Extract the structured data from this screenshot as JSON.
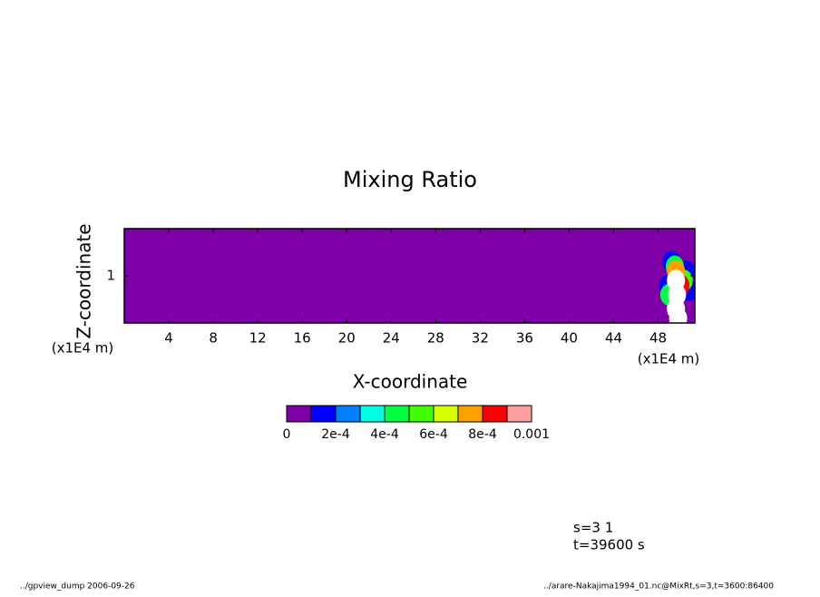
{
  "chart_data": {
    "type": "contour",
    "title": "Mixing Ratio",
    "xlabel": "X-coordinate",
    "ylabel": "Z-coordinate",
    "x_unit": "(x1E4 m)",
    "y_unit": "(x1E4 m)",
    "xlim": [
      0,
      51.3
    ],
    "ylim": [
      0.5,
      1.5
    ],
    "xticks": [
      4,
      8,
      12,
      16,
      20,
      24,
      28,
      32,
      36,
      40,
      44,
      48
    ],
    "yticks": [
      1
    ],
    "levels": [
      0,
      0.0001,
      0.0002,
      0.0003,
      0.0004,
      0.0005,
      0.0006,
      0.0007,
      0.0008,
      0.0009,
      0.001
    ],
    "colors": [
      "#7f00a8",
      "#0000ff",
      "#0080ff",
      "#00ffe0",
      "#00ff40",
      "#40ff00",
      "#d8ff00",
      "#ffa000",
      "#ff0000",
      "#ffa0a0"
    ],
    "over_color": "#ffffff",
    "colorbar_ticks": [
      0,
      {
        "value": 0.0002,
        "label": "2e-4"
      },
      {
        "value": 0.0004,
        "label": "4e-4"
      },
      {
        "value": 0.0006,
        "label": "6e-4"
      },
      {
        "value": 0.0008,
        "label": "8e-4"
      },
      0.001
    ],
    "cells": [
      {
        "x": 49.2,
        "z": 1.15,
        "value": 0.00015
      },
      {
        "x": 50.5,
        "z": 1.05,
        "value": 0.00015
      },
      {
        "x": 50.7,
        "z": 0.85,
        "value": 0.00015
      },
      {
        "x": 48.9,
        "z": 0.9,
        "value": 0.00015
      },
      {
        "x": 49.5,
        "z": 1.1,
        "value": 0.00045
      },
      {
        "x": 50.3,
        "z": 0.95,
        "value": 0.00055
      },
      {
        "x": 49.0,
        "z": 0.8,
        "value": 0.00045
      },
      {
        "x": 49.6,
        "z": 1.05,
        "value": 0.00075
      },
      {
        "x": 50.0,
        "z": 0.9,
        "value": 0.00085
      },
      {
        "x": 49.6,
        "z": 0.95,
        "value": 0.0013
      },
      {
        "x": 49.7,
        "z": 0.8,
        "value": 0.0012
      },
      {
        "x": 49.6,
        "z": 0.65,
        "value": 0.0011
      },
      {
        "x": 49.8,
        "z": 0.55,
        "value": 0.0011
      }
    ]
  },
  "info": {
    "step": "s=3 1",
    "time": "t=39600 s"
  },
  "footer": {
    "left": "../gpview_dump  2006-09-26",
    "right": "../arare-Nakajima1994_01.nc@MixRt,s=3,t=3600:86400"
  }
}
